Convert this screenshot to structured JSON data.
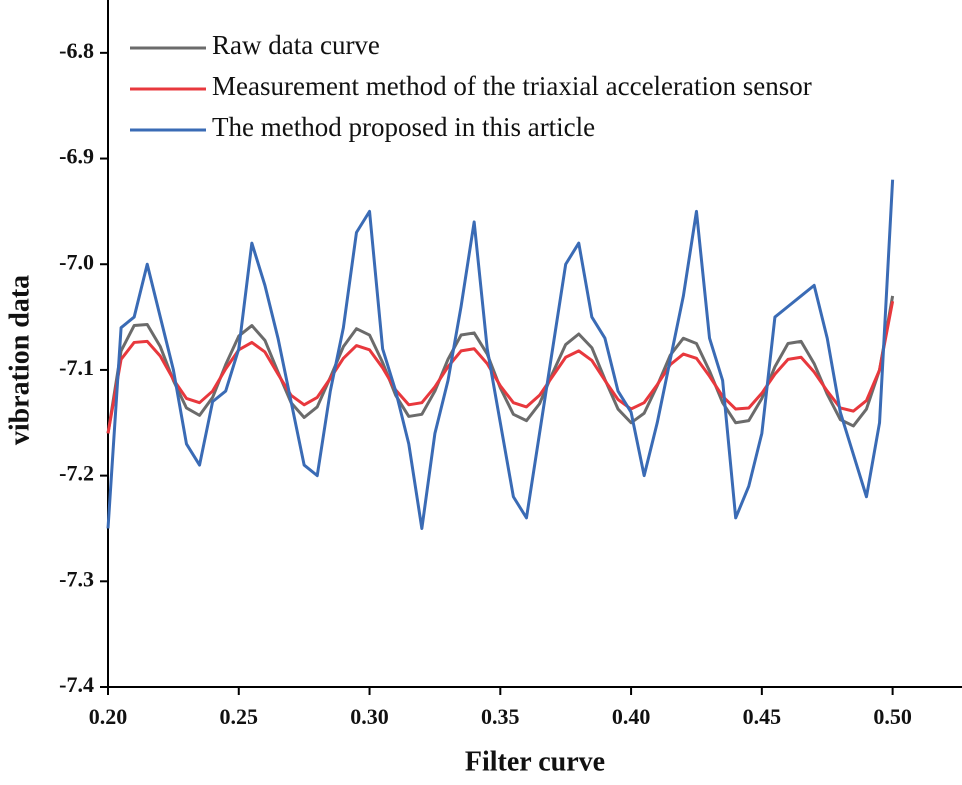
{
  "chart_data": {
    "type": "line",
    "x_label": "Filter curve",
    "y_label": "vibration data",
    "xlim": [
      0.2,
      0.525
    ],
    "ylim": [
      -7.4,
      -6.75
    ],
    "xticks": [
      {
        "value": 0.2,
        "label": "0.20"
      },
      0.25,
      {
        "value": 0.3,
        "label": "0.30"
      },
      0.35,
      {
        "value": 0.4,
        "label": "0.40"
      },
      0.45,
      {
        "value": 0.5,
        "label": "0.50"
      }
    ],
    "yticks": [
      -7.4,
      -7.3,
      -7.2,
      -7.1,
      {
        "value": -7.0,
        "label": "-7.0"
      },
      -6.9,
      -6.8
    ],
    "legend": "upper left",
    "x": [
      0.2,
      0.205,
      0.21,
      0.215,
      0.22,
      0.225,
      0.23,
      0.235,
      0.24,
      0.245,
      0.25,
      0.255,
      0.26,
      0.265,
      0.27,
      0.275,
      0.28,
      0.285,
      0.29,
      0.295,
      0.3,
      0.305,
      0.31,
      0.315,
      0.32,
      0.325,
      0.33,
      0.335,
      0.34,
      0.345,
      0.35,
      0.355,
      0.36,
      0.365,
      0.37,
      0.375,
      0.38,
      0.385,
      0.39,
      0.395,
      0.4,
      0.405,
      0.41,
      0.415,
      0.42,
      0.425,
      0.43,
      0.435,
      0.44,
      0.445,
      0.45,
      0.455,
      0.46,
      0.465,
      0.47,
      0.475,
      0.48,
      0.485,
      0.49,
      0.495,
      0.5
    ],
    "series": [
      {
        "name": "Raw data curve",
        "color": "#6b6b6b",
        "values": [
          -7.16,
          -7.082,
          -7.058,
          -7.057,
          -7.078,
          -7.11,
          -7.136,
          -7.143,
          -7.126,
          -7.095,
          -7.068,
          -7.058,
          -7.072,
          -7.102,
          -7.131,
          -7.145,
          -7.135,
          -7.107,
          -7.078,
          -7.061,
          -7.067,
          -7.093,
          -7.124,
          -7.144,
          -7.142,
          -7.12,
          -7.09,
          -7.067,
          -7.065,
          -7.085,
          -7.117,
          -7.142,
          -7.148,
          -7.132,
          -7.103,
          -7.076,
          -7.066,
          -7.079,
          -7.109,
          -7.137,
          -7.15,
          -7.141,
          -7.115,
          -7.086,
          -7.07,
          -7.075,
          -7.101,
          -7.131,
          -7.15,
          -7.148,
          -7.127,
          -7.097,
          -7.075,
          -7.073,
          -7.094,
          -7.123,
          -7.147,
          -7.153,
          -7.137,
          -7.1,
          -7.03
        ]
      },
      {
        "name": "Measurement method of the triaxial acceleration sensor",
        "color": "#e8383d",
        "values": [
          -7.16,
          -7.09,
          -7.074,
          -7.073,
          -7.087,
          -7.109,
          -7.127,
          -7.131,
          -7.12,
          -7.099,
          -7.081,
          -7.074,
          -7.083,
          -7.104,
          -7.124,
          -7.133,
          -7.126,
          -7.108,
          -7.089,
          -7.077,
          -7.081,
          -7.098,
          -7.119,
          -7.133,
          -7.131,
          -7.116,
          -7.097,
          -7.082,
          -7.08,
          -7.094,
          -7.115,
          -7.131,
          -7.135,
          -7.124,
          -7.106,
          -7.088,
          -7.082,
          -7.091,
          -7.11,
          -7.128,
          -7.137,
          -7.131,
          -7.114,
          -7.095,
          -7.085,
          -7.089,
          -7.106,
          -7.125,
          -7.137,
          -7.136,
          -7.122,
          -7.104,
          -7.09,
          -7.088,
          -7.102,
          -7.12,
          -7.136,
          -7.139,
          -7.129,
          -7.1,
          -7.035
        ]
      },
      {
        "name": "The method proposed in this article",
        "color": "#3a6bb5",
        "values": [
          -7.25,
          -7.06,
          -7.05,
          -7.0,
          -7.05,
          -7.1,
          -7.17,
          -7.19,
          -7.13,
          -7.12,
          -7.08,
          -6.98,
          -7.02,
          -7.07,
          -7.13,
          -7.19,
          -7.2,
          -7.12,
          -7.06,
          -6.97,
          -6.95,
          -7.08,
          -7.12,
          -7.17,
          -7.25,
          -7.16,
          -7.11,
          -7.04,
          -6.96,
          -7.08,
          -7.15,
          -7.22,
          -7.24,
          -7.16,
          -7.08,
          -7.0,
          -6.98,
          -7.05,
          -7.07,
          -7.12,
          -7.14,
          -7.2,
          -7.15,
          -7.09,
          -7.03,
          -6.95,
          -7.07,
          -7.11,
          -7.24,
          -7.21,
          -7.16,
          -7.05,
          -7.04,
          -7.03,
          -7.02,
          -7.07,
          -7.14,
          -7.18,
          -7.22,
          -7.15,
          -6.92
        ]
      }
    ]
  }
}
